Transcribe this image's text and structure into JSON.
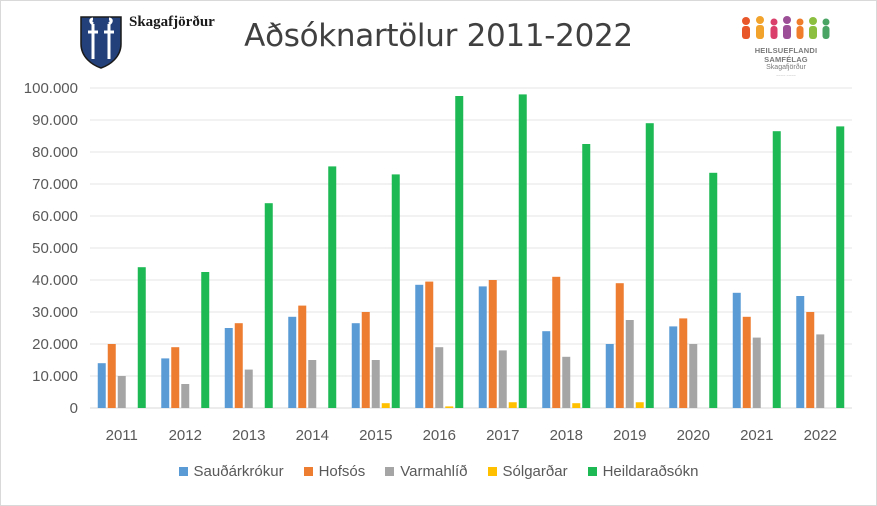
{
  "header": {
    "brand": "Skagafjörður",
    "title": "Aðsóknartölur 2011-2022",
    "partner_name": "HEILSUEFLANDI SAMFÉLAG",
    "partner_sub": "Skagafjörður"
  },
  "colors": {
    "Sauðárkrókur": "#5b9bd5",
    "Hofsós": "#ed7d31",
    "Varmahlíð": "#a5a5a5",
    "Sólgarðar": "#ffc000",
    "Heildaraðsókn": "#1db954"
  },
  "chart_data": {
    "type": "bar",
    "title": "Aðsóknartölur 2011-2022",
    "xlabel": "",
    "ylabel": "",
    "ylim": [
      0,
      100000
    ],
    "yticks": [
      0,
      10000,
      20000,
      30000,
      40000,
      50000,
      60000,
      70000,
      80000,
      90000,
      100000
    ],
    "ytick_labels": [
      "0",
      "10.000",
      "20.000",
      "30.000",
      "40.000",
      "50.000",
      "60.000",
      "70.000",
      "80.000",
      "90.000",
      "100.000"
    ],
    "grid": true,
    "legend_position": "bottom",
    "categories": [
      "2011",
      "2012",
      "2013",
      "2014",
      "2015",
      "2016",
      "2017",
      "2018",
      "2019",
      "2020",
      "2021",
      "2022"
    ],
    "series": [
      {
        "name": "Sauðárkrókur",
        "values": [
          14000,
          15500,
          25000,
          28500,
          26500,
          38500,
          38000,
          24000,
          20000,
          25500,
          36000,
          35000
        ]
      },
      {
        "name": "Hofsós",
        "values": [
          20000,
          19000,
          26500,
          32000,
          30000,
          39500,
          40000,
          41000,
          39000,
          28000,
          28500,
          30000
        ]
      },
      {
        "name": "Varmahlíð",
        "values": [
          10000,
          7500,
          12000,
          15000,
          15000,
          19000,
          18000,
          16000,
          27500,
          20000,
          22000,
          23000
        ]
      },
      {
        "name": "Sólgarðar",
        "values": [
          0,
          0,
          0,
          0,
          1500,
          500,
          1800,
          1500,
          1800,
          0,
          0,
          0
        ]
      },
      {
        "name": "Heildaraðsókn",
        "values": [
          44000,
          42500,
          64000,
          75500,
          73000,
          97500,
          98000,
          82500,
          89000,
          73500,
          86500,
          88000
        ]
      }
    ]
  }
}
